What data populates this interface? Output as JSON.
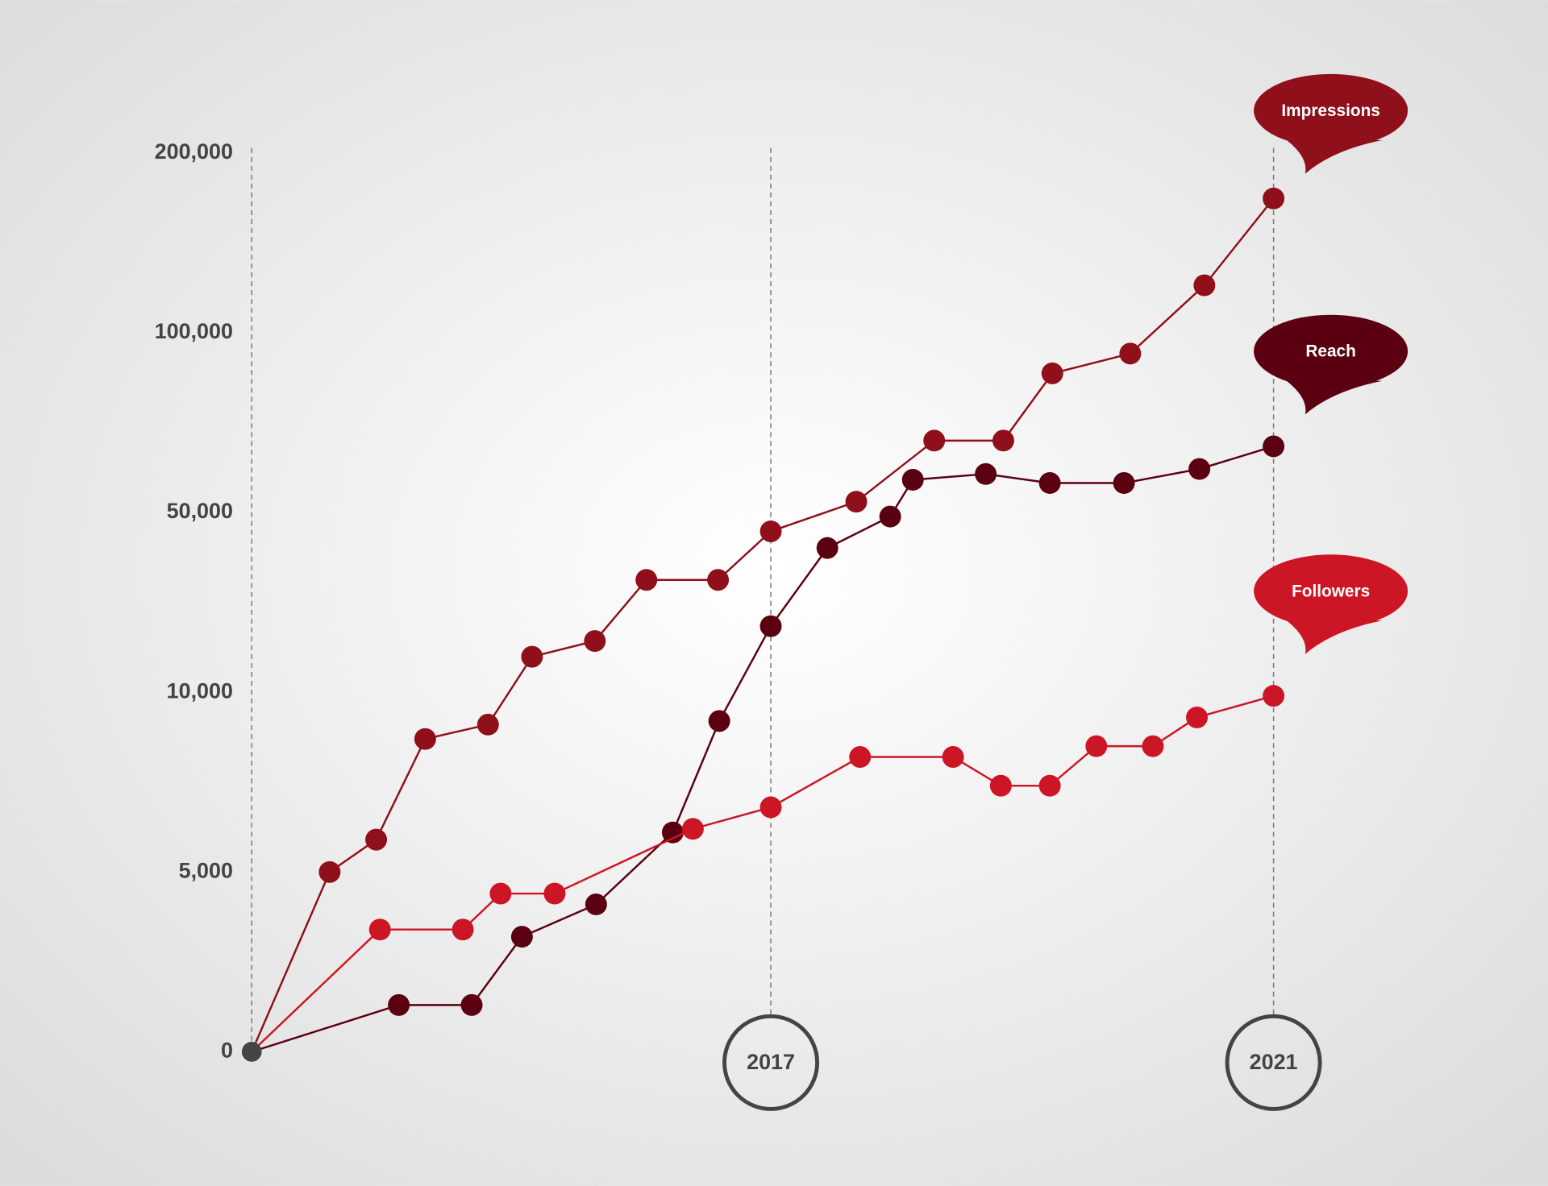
{
  "chart_data": {
    "type": "line",
    "origin_color": "#444444",
    "xlim": [
      2012.87,
      2021
    ],
    "xticks": [
      2017,
      2021
    ],
    "ylim": [
      0,
      200000
    ],
    "yticks": [
      0,
      {
        "value": 5000,
        "label": "5,000"
      },
      {
        "value": 10000,
        "label": "10,000"
      },
      {
        "value": 50000,
        "label": "50,000"
      },
      {
        "value": 100000,
        "label": "100,000"
      },
      {
        "value": 200000,
        "label": "200,000"
      }
    ],
    "series": [
      {
        "name": "Impressions",
        "color": "#8f0f1a",
        "x": [
          2012.87,
          2013.49,
          2013.86,
          2014.25,
          2014.75,
          2015.1,
          2015.6,
          2016.01,
          2016.58,
          2017,
          2017.68,
          2018.3,
          2018.85,
          2019.24,
          2019.86,
          2020.45,
          2021
        ],
        "values": [
          0,
          5000,
          5900,
          8700,
          9100,
          17900,
          21400,
          35000,
          35000,
          45800,
          53000,
          70000,
          70000,
          88700,
          94200,
          126400,
          174700
        ]
      },
      {
        "name": "Reach",
        "color": "#5a0010",
        "x": [
          2012.87,
          2014.04,
          2014.62,
          2015.02,
          2015.61,
          2016.22,
          2016.59,
          2017,
          2017.45,
          2017.95,
          2018.13,
          2018.71,
          2019.22,
          2019.81,
          2020.41,
          2021
        ],
        "values": [
          0,
          1300,
          1300,
          3200,
          4100,
          6100,
          9200,
          24700,
          42100,
          49100,
          59100,
          60700,
          58200,
          58200,
          62100,
          68400
        ]
      },
      {
        "name": "Followers",
        "color": "#cc1525",
        "x": [
          2012.87,
          2013.89,
          2014.55,
          2014.85,
          2015.28,
          2016.38,
          2017,
          2017.71,
          2018.45,
          2018.83,
          2019.22,
          2019.59,
          2020.04,
          2020.39,
          2021
        ],
        "values": [
          0,
          3400,
          3400,
          4400,
          4400,
          6200,
          6800,
          8200,
          8200,
          7400,
          7400,
          8500,
          8500,
          9300,
          9900
        ]
      }
    ]
  }
}
